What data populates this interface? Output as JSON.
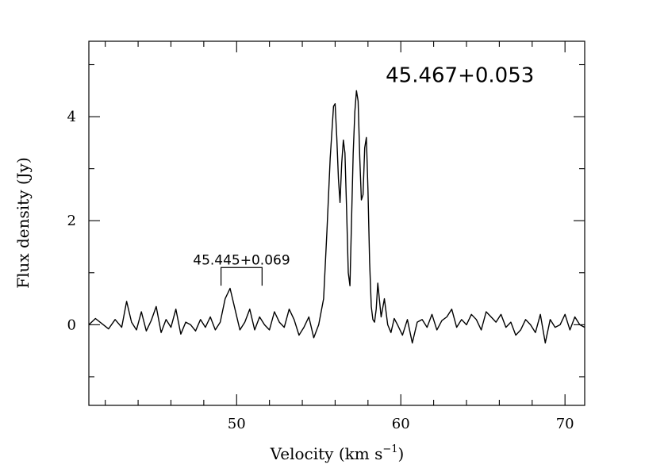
{
  "chart_data": {
    "type": "line",
    "xlabel": "Velocity (km s",
    "xlabel_sup": "−1",
    "xlabel_close": ")",
    "ylabel": "Flux density (Jy)",
    "xlim": [
      41,
      71.2
    ],
    "ylim": [
      -1.55,
      5.45
    ],
    "x_major_ticks": [
      50,
      60,
      70
    ],
    "x_tick_labels": [
      "50",
      "60",
      "70"
    ],
    "x_minor_step": 2,
    "y_major_ticks": [
      0,
      2,
      4
    ],
    "y_tick_labels": [
      "0",
      "2",
      "4"
    ],
    "y_minor_ticks": [
      -1,
      1,
      3,
      5
    ],
    "grid": false,
    "annotations": [
      {
        "text": "45.467+0.053",
        "x": 63.6,
        "y": 4.8
      },
      {
        "text": "45.445+0.069",
        "x": 50.3,
        "y": 1.25,
        "bracket": [
          49.05,
          51.55
        ],
        "bracket_bottom": 0.75,
        "bracket_top": 1.1
      }
    ],
    "series": [
      {
        "x": [
          41.0,
          41.4,
          41.8,
          42.2,
          42.6,
          43.0,
          43.3,
          43.6,
          43.9,
          44.2,
          44.5,
          44.8,
          45.1,
          45.4,
          45.7,
          46.0,
          46.3,
          46.6,
          46.9,
          47.2,
          47.5,
          47.8,
          48.1,
          48.4,
          48.7,
          49.0,
          49.3,
          49.6,
          49.9,
          50.2,
          50.5,
          50.8,
          51.1,
          51.4,
          51.7,
          52.0,
          52.3,
          52.6,
          52.9,
          53.2,
          53.5,
          53.8,
          54.1,
          54.4,
          54.7,
          55.0,
          55.3,
          55.5,
          55.7,
          55.9,
          56.0,
          56.1,
          56.2,
          56.3,
          56.4,
          56.5,
          56.6,
          56.7,
          56.8,
          56.9,
          57.0,
          57.1,
          57.2,
          57.3,
          57.4,
          57.5,
          57.6,
          57.7,
          57.8,
          57.9,
          58.0,
          58.1,
          58.2,
          58.3,
          58.4,
          58.5,
          58.6,
          58.8,
          59.0,
          59.2,
          59.4,
          59.6,
          59.8,
          60.1,
          60.4,
          60.7,
          61.0,
          61.3,
          61.6,
          61.9,
          62.2,
          62.5,
          62.8,
          63.1,
          63.4,
          63.7,
          64.0,
          64.3,
          64.6,
          64.9,
          65.2,
          65.5,
          65.8,
          66.1,
          66.4,
          66.7,
          67.0,
          67.3,
          67.6,
          67.9,
          68.2,
          68.5,
          68.8,
          69.1,
          69.4,
          69.7,
          70.0,
          70.3,
          70.6,
          70.9,
          71.2
        ],
        "values": [
          0.0,
          0.12,
          0.02,
          -0.08,
          0.1,
          -0.05,
          0.45,
          0.05,
          -0.1,
          0.25,
          -0.12,
          0.08,
          0.35,
          -0.15,
          0.1,
          -0.05,
          0.3,
          -0.18,
          0.05,
          0.0,
          -0.12,
          0.1,
          -0.05,
          0.15,
          -0.1,
          0.05,
          0.5,
          0.7,
          0.3,
          -0.1,
          0.05,
          0.3,
          -0.1,
          0.15,
          0.0,
          -0.1,
          0.25,
          0.05,
          -0.05,
          0.3,
          0.1,
          -0.2,
          -0.05,
          0.15,
          -0.25,
          0.0,
          0.5,
          1.8,
          3.2,
          4.2,
          4.25,
          3.6,
          2.8,
          2.35,
          3.1,
          3.55,
          3.3,
          2.2,
          1.0,
          0.75,
          2.0,
          3.3,
          4.1,
          4.5,
          4.3,
          3.2,
          2.4,
          2.5,
          3.4,
          3.6,
          2.6,
          1.2,
          0.35,
          0.1,
          0.05,
          0.3,
          0.8,
          0.15,
          0.5,
          0.0,
          -0.15,
          0.12,
          0.0,
          -0.2,
          0.1,
          -0.35,
          0.05,
          0.1,
          -0.05,
          0.2,
          -0.1,
          0.08,
          0.15,
          0.3,
          -0.05,
          0.1,
          0.0,
          0.2,
          0.1,
          -0.1,
          0.25,
          0.15,
          0.05,
          0.2,
          -0.05,
          0.05,
          -0.2,
          -0.1,
          0.1,
          0.0,
          -0.15,
          0.2,
          -0.35,
          0.1,
          -0.05,
          0.0,
          0.2,
          -0.1,
          0.15,
          0.0,
          -0.05
        ]
      }
    ]
  }
}
